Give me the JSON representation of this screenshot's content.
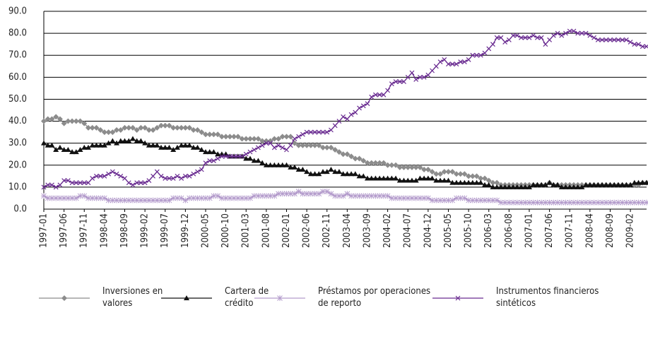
{
  "chart_data": {
    "type": "line",
    "categories": [
      "1997-01",
      null,
      null,
      null,
      null,
      "1997-06",
      null,
      null,
      null,
      null,
      "1997-11",
      null,
      null,
      null,
      null,
      "1998-04",
      null,
      null,
      null,
      null,
      "1998-09",
      null,
      null,
      null,
      null,
      "1999-02",
      null,
      null,
      null,
      null,
      "1999-07",
      null,
      null,
      null,
      null,
      "1999-12",
      null,
      null,
      null,
      null,
      "2000-05",
      null,
      null,
      null,
      null,
      "2000-10",
      null,
      null,
      null,
      null,
      "2001-03",
      null,
      null,
      null,
      null,
      "2001-08",
      null,
      null,
      null,
      null,
      "2002-01",
      null,
      null,
      null,
      null,
      "2002-06",
      null,
      null,
      null,
      null,
      "2002-11",
      null,
      null,
      null,
      null,
      "2003-04",
      null,
      null,
      null,
      null,
      "2003-09",
      null,
      null,
      null,
      null,
      "2004-02",
      null,
      null,
      null,
      null,
      "2004-07",
      null,
      null,
      null,
      null,
      "2004-12",
      null,
      null,
      null,
      null,
      "2005-05",
      null,
      null,
      null,
      null,
      "2005-10",
      null,
      null,
      null,
      null,
      "2006-03",
      null,
      null,
      null,
      null,
      "2006-08",
      null,
      null,
      null,
      null,
      "2007-01",
      null,
      null,
      null,
      null,
      "2007-06",
      null,
      null,
      null,
      null,
      "2007-11",
      null,
      null,
      null,
      null,
      "2008-04",
      null,
      null,
      null,
      null,
      "2008-09",
      null,
      null,
      null,
      null,
      "2009-02",
      null,
      null,
      null,
      null
    ],
    "series": [
      {
        "name": "Inversiones en valores",
        "color": "#8c8c8c",
        "marker": "diamond",
        "values": [
          40,
          41,
          41,
          42,
          41,
          39,
          40,
          40,
          40,
          40,
          39,
          37,
          37,
          37,
          36,
          35,
          35,
          35,
          36,
          36,
          37,
          37,
          37,
          36,
          37,
          37,
          36,
          36,
          37,
          38,
          38,
          38,
          37,
          37,
          37,
          37,
          37,
          36,
          36,
          35,
          34,
          34,
          34,
          34,
          33,
          33,
          33,
          33,
          33,
          32,
          32,
          32,
          32,
          32,
          31,
          31,
          31,
          32,
          32,
          33,
          33,
          33,
          30,
          29,
          29,
          29,
          29,
          29,
          29,
          28,
          28,
          28,
          27,
          26,
          25,
          25,
          24,
          23,
          23,
          22,
          21,
          21,
          21,
          21,
          21,
          20,
          20,
          20,
          19,
          19,
          19,
          19,
          19,
          19,
          18,
          18,
          17,
          16,
          16,
          17,
          17,
          17,
          16,
          16,
          16,
          15,
          15,
          15,
          14,
          14,
          13,
          12,
          12,
          11,
          11,
          11,
          11,
          11,
          11,
          11,
          11,
          11,
          11,
          11,
          11,
          12,
          11,
          11,
          11,
          11,
          11,
          11,
          11,
          11,
          11,
          11,
          11,
          11,
          11,
          11,
          11,
          11,
          11,
          11,
          11,
          11,
          11,
          11,
          12,
          12
        ]
      },
      {
        "name": "Cartera de crédito",
        "color": "#111111",
        "marker": "triangle",
        "values": [
          30,
          29,
          29,
          27,
          28,
          27,
          27,
          26,
          26,
          27,
          28,
          28,
          29,
          29,
          29,
          29,
          30,
          31,
          30,
          31,
          31,
          31,
          32,
          31,
          31,
          30,
          29,
          29,
          29,
          28,
          28,
          28,
          27,
          28,
          29,
          29,
          29,
          28,
          28,
          27,
          26,
          26,
          26,
          25,
          25,
          25,
          24,
          24,
          24,
          24,
          23,
          23,
          22,
          22,
          21,
          20,
          20,
          20,
          20,
          20,
          20,
          19,
          19,
          18,
          18,
          17,
          16,
          16,
          16,
          17,
          17,
          18,
          17,
          17,
          16,
          16,
          16,
          16,
          15,
          15,
          14,
          14,
          14,
          14,
          14,
          14,
          14,
          14,
          13,
          13,
          13,
          13,
          13,
          14,
          14,
          14,
          14,
          13,
          13,
          13,
          13,
          12,
          12,
          12,
          12,
          12,
          12,
          12,
          12,
          11,
          11,
          10,
          10,
          10,
          10,
          10,
          10,
          10,
          10,
          10,
          10,
          11,
          11,
          11,
          11,
          12,
          11,
          11,
          10,
          10,
          10,
          10,
          10,
          10,
          11,
          11,
          11,
          11,
          11,
          11,
          11,
          11,
          11,
          11,
          11,
          11,
          12,
          12,
          12,
          12
        ]
      },
      {
        "name": "Préstamos por operaciones de reporto",
        "color": "#b49ccc",
        "marker": "star",
        "values": [
          6,
          5,
          5,
          5,
          5,
          5,
          5,
          5,
          5,
          6,
          6,
          5,
          5,
          5,
          5,
          5,
          4,
          4,
          4,
          4,
          4,
          4,
          4,
          4,
          4,
          4,
          4,
          4,
          4,
          4,
          4,
          4,
          5,
          5,
          5,
          4,
          5,
          5,
          5,
          5,
          5,
          5,
          6,
          6,
          5,
          5,
          5,
          5,
          5,
          5,
          5,
          5,
          6,
          6,
          6,
          6,
          6,
          6,
          7,
          7,
          7,
          7,
          7,
          8,
          7,
          7,
          7,
          7,
          7,
          8,
          8,
          7,
          6,
          6,
          6,
          7,
          6,
          6,
          6,
          6,
          6,
          6,
          6,
          6,
          6,
          6,
          5,
          5,
          5,
          5,
          5,
          5,
          5,
          5,
          5,
          5,
          4,
          4,
          4,
          4,
          4,
          4,
          5,
          5,
          5,
          4,
          4,
          4,
          4,
          4,
          4,
          4,
          4,
          3,
          3,
          3,
          3,
          3,
          3,
          3,
          3,
          3,
          3,
          3,
          3,
          3,
          3,
          3,
          3,
          3,
          3,
          3,
          3,
          3,
          3,
          3,
          3,
          3,
          3,
          3,
          3,
          3,
          3,
          3,
          3,
          3,
          3,
          3,
          3,
          3
        ]
      },
      {
        "name": "Instrumentos financieros sintéticos",
        "color": "#6a2c91",
        "marker": "x",
        "values": [
          10,
          11,
          11,
          10,
          11,
          13,
          13,
          12,
          12,
          12,
          12,
          12,
          14,
          15,
          15,
          15,
          16,
          17,
          16,
          15,
          14,
          12,
          11,
          12,
          12,
          12,
          13,
          15,
          17,
          15,
          14,
          14,
          14,
          15,
          14,
          15,
          15,
          16,
          17,
          18,
          21,
          22,
          22,
          23,
          24,
          24,
          24,
          24,
          24,
          24,
          25,
          26,
          27,
          28,
          29,
          30,
          30,
          28,
          29,
          28,
          27,
          29,
          32,
          33,
          34,
          35,
          35,
          35,
          35,
          35,
          35,
          36,
          38,
          40,
          42,
          41,
          43,
          44,
          46,
          47,
          48,
          51,
          52,
          52,
          52,
          54,
          57,
          58,
          58,
          58,
          60,
          62,
          59,
          60,
          60,
          61,
          63,
          65,
          67,
          68,
          66,
          66,
          66,
          67,
          67,
          68,
          70,
          70,
          70,
          71,
          73,
          75,
          78,
          78,
          76,
          77,
          79,
          79,
          78,
          78,
          78,
          79,
          78,
          78,
          75,
          77,
          79,
          80,
          79,
          80,
          81,
          81,
          80,
          80,
          80,
          79,
          78,
          77,
          77,
          77,
          77,
          77,
          77,
          77,
          77,
          76,
          75,
          75,
          74,
          74
        ]
      }
    ],
    "ylim": [
      0,
      90
    ],
    "yticks": [
      {
        "value": 0,
        "label": "0.0"
      },
      {
        "value": 10,
        "label": "10.0"
      },
      {
        "value": 20,
        "label": "20.0"
      },
      {
        "value": 30,
        "label": "30.0"
      },
      {
        "value": 40,
        "label": "40.0"
      },
      {
        "value": 50,
        "label": "50.0"
      },
      {
        "value": 60,
        "label": "60.0"
      },
      {
        "value": 70,
        "label": "70.0"
      },
      {
        "value": 80,
        "label": "80.0"
      },
      {
        "value": 90,
        "label": "90.0"
      }
    ],
    "grid": true
  }
}
